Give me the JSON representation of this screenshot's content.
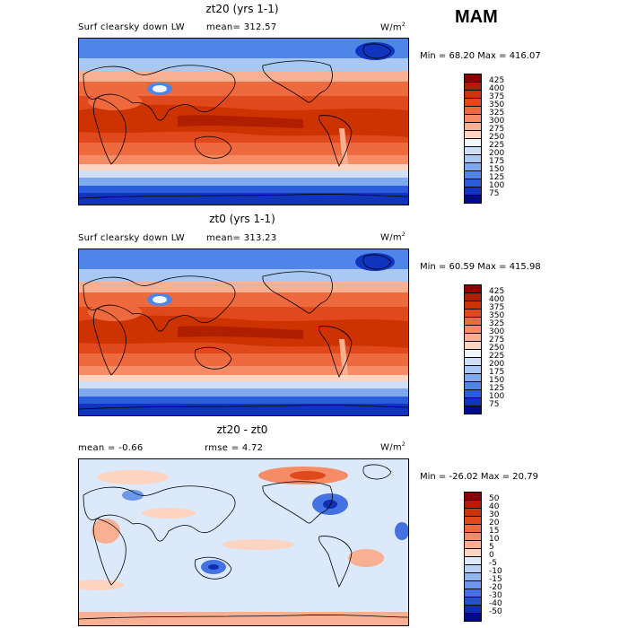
{
  "season": "MAM",
  "panels": [
    {
      "title": "zt20 (yrs 1-1)",
      "variable": "Surf clearsky down LW",
      "stat_text": "mean= 312.57",
      "units": "W/m",
      "units_exp": "2",
      "minmax": "Min =  68.20 Max = 416.07",
      "kind": "abs"
    },
    {
      "title": "zt0 (yrs 1-1)",
      "variable": "Surf clearsky down LW",
      "stat_text": "mean= 313.23",
      "units": "W/m",
      "units_exp": "2",
      "minmax": "Min =  60.59 Max = 415.98",
      "kind": "abs"
    },
    {
      "title": "zt20 - zt0",
      "mean_text": "mean =  -0.66",
      "rmse_text": "rmse =   4.72",
      "units": "W/m",
      "units_exp": "2",
      "minmax": "Min = -26.02 Max =  20.79",
      "kind": "diff"
    }
  ],
  "chart_data": [
    {
      "type": "heatmap",
      "title": "zt20 (yrs 1-1)",
      "subtitle": "Surf clearsky down LW",
      "mean": 312.57,
      "min": 68.2,
      "max": 416.07,
      "units": "W/m2",
      "levels": [
        75,
        100,
        125,
        150,
        175,
        200,
        225,
        250,
        275,
        300,
        325,
        350,
        375,
        400,
        425
      ]
    },
    {
      "type": "heatmap",
      "title": "zt0 (yrs 1-1)",
      "subtitle": "Surf clearsky down LW",
      "mean": 313.23,
      "min": 60.59,
      "max": 415.98,
      "units": "W/m2",
      "levels": [
        75,
        100,
        125,
        150,
        175,
        200,
        225,
        250,
        275,
        300,
        325,
        350,
        375,
        400,
        425
      ]
    },
    {
      "type": "heatmap",
      "title": "zt20 - zt0",
      "mean": -0.66,
      "rmse": 4.72,
      "min": -26.02,
      "max": 20.79,
      "units": "W/m2",
      "levels": [
        -50,
        -40,
        -30,
        -20,
        -15,
        -10,
        -5,
        0,
        5,
        10,
        15,
        20,
        30,
        40,
        50
      ]
    }
  ],
  "colorbars": {
    "abs": {
      "labels": [
        "425",
        "400",
        "375",
        "350",
        "325",
        "300",
        "275",
        "250",
        "225",
        "200",
        "175",
        "150",
        "125",
        "100",
        "75"
      ],
      "colors": [
        "#8b0000",
        "#b01e00",
        "#cc3300",
        "#e0491c",
        "#ee6a3e",
        "#f68c66",
        "#f9b092",
        "#fcd4bf",
        "#f2f6fa",
        "#cfe0f6",
        "#a9c8f3",
        "#7fa9ee",
        "#4f84e8",
        "#2a5ddc",
        "#1034c0",
        "#000a8c"
      ]
    },
    "diff": {
      "labels": [
        "50",
        "40",
        "30",
        "20",
        "15",
        "10",
        "5",
        "0",
        "-5",
        "-10",
        "-15",
        "-20",
        "-30",
        "-40",
        "-50"
      ],
      "colors": [
        "#8b0000",
        "#b01e00",
        "#cc3300",
        "#e0491c",
        "#ee6a3e",
        "#f68c66",
        "#f9b092",
        "#fcd4bf",
        "#dbe9fa",
        "#b8d2f5",
        "#90b6f0",
        "#6a97ea",
        "#4472e2",
        "#2350d4",
        "#0d2fb0",
        "#000a8c"
      ]
    }
  }
}
